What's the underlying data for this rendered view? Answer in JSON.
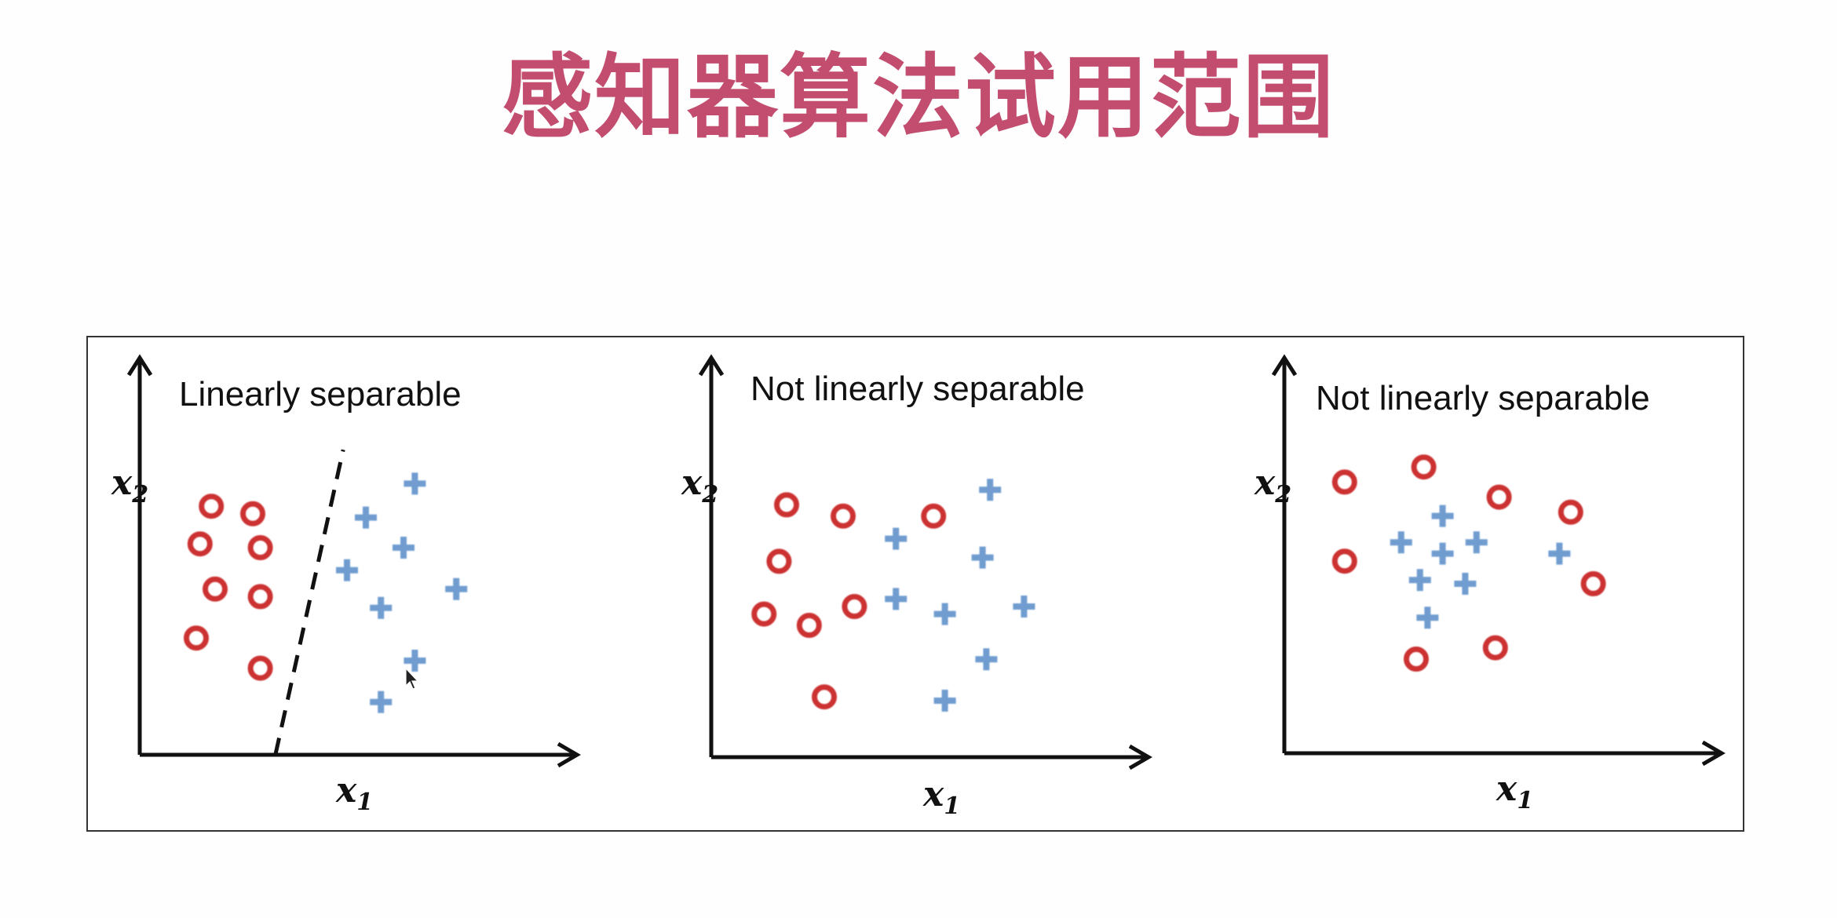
{
  "title": "感知器算法试用范围",
  "colors": {
    "title": "#c24d6f",
    "circle_class": "#cc3333",
    "plus_class": "#6f9cd0",
    "axes": "#111111"
  },
  "chart_data": [
    {
      "type": "scatter",
      "title": "Linearly separable",
      "xlabel": "x",
      "xlabel_sub": "1",
      "ylabel": "x",
      "ylabel_sub": "2",
      "xlim": [
        0,
        10
      ],
      "ylim": [
        0,
        10
      ],
      "grid": false,
      "decision_boundary": {
        "style": "dashed",
        "from": [
          3.6,
          0
        ],
        "to": [
          5.4,
          8.1
        ]
      },
      "series": [
        {
          "marker": "circle",
          "points": [
            [
              1.9,
              6.6
            ],
            [
              3.0,
              6.4
            ],
            [
              1.6,
              5.6
            ],
            [
              3.2,
              5.5
            ],
            [
              2.0,
              4.4
            ],
            [
              3.2,
              4.2
            ],
            [
              1.5,
              3.1
            ],
            [
              3.2,
              2.3
            ]
          ]
        },
        {
          "marker": "plus",
          "points": [
            [
              7.3,
              7.2
            ],
            [
              6.0,
              6.3
            ],
            [
              7.0,
              5.5
            ],
            [
              5.5,
              4.9
            ],
            [
              6.4,
              3.9
            ],
            [
              8.4,
              4.4
            ],
            [
              7.3,
              2.5
            ],
            [
              6.4,
              1.4
            ]
          ]
        }
      ]
    },
    {
      "type": "scatter",
      "title": "Not linearly separable",
      "xlabel": "x",
      "xlabel_sub": "1",
      "ylabel": "x",
      "ylabel_sub": "2",
      "xlim": [
        0,
        10
      ],
      "ylim": [
        0,
        10
      ],
      "grid": false,
      "series": [
        {
          "marker": "circle",
          "points": [
            [
              2.0,
              6.7
            ],
            [
              3.5,
              6.4
            ],
            [
              5.9,
              6.4
            ],
            [
              1.8,
              5.2
            ],
            [
              1.4,
              3.8
            ],
            [
              3.8,
              4.0
            ],
            [
              2.6,
              3.5
            ],
            [
              3.0,
              1.6
            ]
          ]
        },
        {
          "marker": "plus",
          "points": [
            [
              7.4,
              7.1
            ],
            [
              4.9,
              5.8
            ],
            [
              7.2,
              5.3
            ],
            [
              4.9,
              4.2
            ],
            [
              6.2,
              3.8
            ],
            [
              8.3,
              4.0
            ],
            [
              7.3,
              2.6
            ],
            [
              6.2,
              1.5
            ]
          ]
        }
      ]
    },
    {
      "type": "scatter",
      "title": "Not linearly separable",
      "xlabel": "x",
      "xlabel_sub": "1",
      "ylabel": "x",
      "ylabel_sub": "2",
      "xlim": [
        0,
        10
      ],
      "ylim": [
        0,
        10
      ],
      "grid": false,
      "series": [
        {
          "marker": "circle",
          "points": [
            [
              1.6,
              7.2
            ],
            [
              3.7,
              7.6
            ],
            [
              5.7,
              6.8
            ],
            [
              7.6,
              6.4
            ],
            [
              1.6,
              5.1
            ],
            [
              8.2,
              4.5
            ],
            [
              3.5,
              2.5
            ],
            [
              5.6,
              2.8
            ]
          ]
        },
        {
          "marker": "plus",
          "points": [
            [
              4.2,
              6.3
            ],
            [
              3.1,
              5.6
            ],
            [
              4.2,
              5.3
            ],
            [
              5.1,
              5.6
            ],
            [
              3.6,
              4.6
            ],
            [
              4.8,
              4.5
            ],
            [
              7.3,
              5.3
            ],
            [
              3.8,
              3.6
            ]
          ]
        }
      ]
    }
  ]
}
